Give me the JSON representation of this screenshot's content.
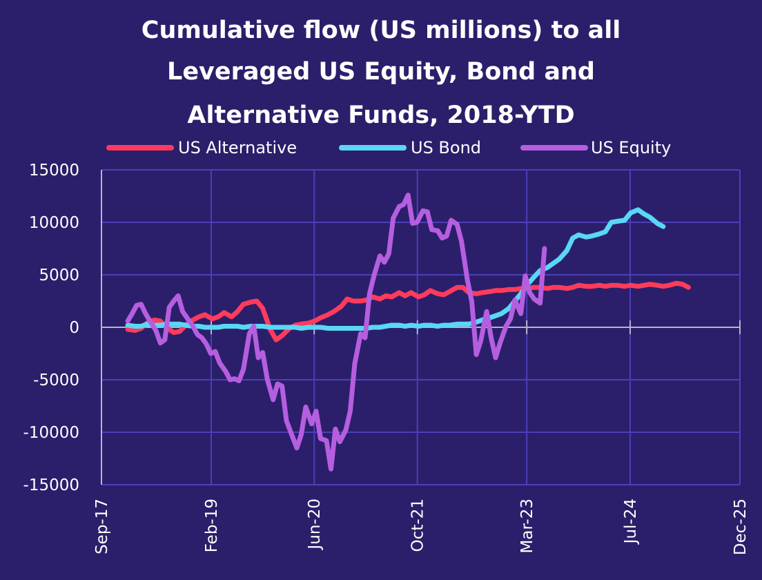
{
  "chart_data": {
    "type": "line",
    "title_lines": [
      "Cumulative flow (US millions) to all",
      "Leveraged US Equity, Bond and",
      "Alternative Funds, 2018-YTD"
    ],
    "xlabel": "",
    "ylabel": "",
    "x_ticks": [
      "Sep-17",
      "Feb-19",
      "Jun-20",
      "Oct-21",
      "Mar-23",
      "Jul-24",
      "Dec-25"
    ],
    "y_ticks": [
      "15000",
      "10000",
      "5000",
      "0",
      "-5000",
      "-10000",
      "-15000"
    ],
    "ylim": [
      -15000,
      15000
    ],
    "xlim": [
      "2017-09",
      "2025-12"
    ],
    "grid": true,
    "legend_position": "top",
    "series": [
      {
        "name": "US Alternative",
        "color": "#ff3b5c",
        "points": [
          [
            "2018-01-03",
            -200
          ],
          [
            "2018-02-07",
            -300
          ],
          [
            "2018-03-07",
            -100
          ],
          [
            "2018-04-04",
            400
          ],
          [
            "2018-05-09",
            700
          ],
          [
            "2018-06-06",
            600
          ],
          [
            "2018-07-04",
            0
          ],
          [
            "2018-08-08",
            -500
          ],
          [
            "2018-09-05",
            -400
          ],
          [
            "2018-10-03",
            200
          ],
          [
            "2018-11-07",
            700
          ],
          [
            "2018-12-05",
            1000
          ],
          [
            "2019-01-02",
            1200
          ],
          [
            "2019-02-06",
            800
          ],
          [
            "2019-03-06",
            1000
          ],
          [
            "2019-04-03",
            1400
          ],
          [
            "2019-05-08",
            1000
          ],
          [
            "2019-06-05",
            1500
          ],
          [
            "2019-07-03",
            2200
          ],
          [
            "2019-08-07",
            2400
          ],
          [
            "2019-09-04",
            2500
          ],
          [
            "2019-10-02",
            1800
          ],
          [
            "2019-11-06",
            -200
          ],
          [
            "2019-12-04",
            -1200
          ],
          [
            "2020-01-01",
            -800
          ],
          [
            "2020-02-05",
            -100
          ],
          [
            "2020-03-04",
            200
          ],
          [
            "2020-04-01",
            300
          ],
          [
            "2020-05-06",
            400
          ],
          [
            "2020-06-03",
            600
          ],
          [
            "2020-07-01",
            900
          ],
          [
            "2020-08-05",
            1200
          ],
          [
            "2020-09-02",
            1500
          ],
          [
            "2020-10-07",
            2000
          ],
          [
            "2020-11-04",
            2700
          ],
          [
            "2020-12-02",
            2500
          ],
          [
            "2021-01-06",
            2500
          ],
          [
            "2021-02-03",
            2600
          ],
          [
            "2021-03-03",
            2900
          ],
          [
            "2021-04-07",
            2700
          ],
          [
            "2021-05-05",
            3000
          ],
          [
            "2021-06-02",
            2900
          ],
          [
            "2021-07-07",
            3300
          ],
          [
            "2021-08-04",
            3000
          ],
          [
            "2021-09-01",
            3300
          ],
          [
            "2021-10-06",
            2900
          ],
          [
            "2021-11-03",
            3100
          ],
          [
            "2021-12-01",
            3500
          ],
          [
            "2022-01-05",
            3200
          ],
          [
            "2022-02-02",
            3100
          ],
          [
            "2022-03-02",
            3400
          ],
          [
            "2022-04-06",
            3800
          ],
          [
            "2022-05-04",
            3800
          ],
          [
            "2022-06-01",
            3300
          ],
          [
            "2022-07-06",
            3200
          ],
          [
            "2022-08-03",
            3300
          ],
          [
            "2022-09-07",
            3400
          ],
          [
            "2022-10-05",
            3500
          ],
          [
            "2022-11-02",
            3500
          ],
          [
            "2022-12-07",
            3600
          ],
          [
            "2023-01-04",
            3600
          ],
          [
            "2023-02-01",
            3700
          ],
          [
            "2023-03-01",
            3700
          ],
          [
            "2023-04-05",
            3800
          ],
          [
            "2023-05-03",
            3800
          ],
          [
            "2023-06-07",
            3700
          ],
          [
            "2023-07-05",
            3800
          ],
          [
            "2023-08-02",
            3800
          ],
          [
            "2023-09-06",
            3700
          ],
          [
            "2023-10-04",
            3800
          ],
          [
            "2023-11-01",
            4000
          ],
          [
            "2023-12-06",
            3900
          ],
          [
            "2024-01-03",
            3900
          ],
          [
            "2024-02-07",
            4000
          ],
          [
            "2024-03-06",
            3900
          ],
          [
            "2024-04-03",
            4000
          ],
          [
            "2024-05-01",
            4000
          ],
          [
            "2024-06-05",
            3900
          ],
          [
            "2024-07-03",
            4000
          ],
          [
            "2024-08-07",
            3900
          ],
          [
            "2024-09-04",
            4000
          ],
          [
            "2024-10-02",
            4100
          ],
          [
            "2024-11-06",
            4000
          ],
          [
            "2024-12-04",
            3900
          ],
          [
            "2025-01-01",
            4000
          ],
          [
            "2025-02-05",
            4200
          ],
          [
            "2025-03-05",
            4100
          ],
          [
            "2025-04-02",
            3800
          ]
        ]
      },
      {
        "name": "US Bond",
        "color": "#5ad7f5",
        "points": [
          [
            "2018-01-03",
            200
          ],
          [
            "2018-02-07",
            100
          ],
          [
            "2018-03-07",
            100
          ],
          [
            "2018-04-04",
            300
          ],
          [
            "2018-05-09",
            200
          ],
          [
            "2018-06-06",
            200
          ],
          [
            "2018-07-04",
            300
          ],
          [
            "2018-08-08",
            300
          ],
          [
            "2018-09-05",
            300
          ],
          [
            "2018-10-03",
            200
          ],
          [
            "2018-11-07",
            100
          ],
          [
            "2018-12-05",
            100
          ],
          [
            "2019-01-02",
            0
          ],
          [
            "2019-02-06",
            0
          ],
          [
            "2019-03-06",
            0
          ],
          [
            "2019-04-03",
            100
          ],
          [
            "2019-05-08",
            100
          ],
          [
            "2019-06-05",
            100
          ],
          [
            "2019-07-03",
            0
          ],
          [
            "2019-08-07",
            100
          ],
          [
            "2019-09-04",
            100
          ],
          [
            "2019-10-02",
            100
          ],
          [
            "2019-11-06",
            0
          ],
          [
            "2019-12-04",
            0
          ],
          [
            "2020-01-01",
            0
          ],
          [
            "2020-02-05",
            0
          ],
          [
            "2020-03-04",
            0
          ],
          [
            "2020-04-01",
            -100
          ],
          [
            "2020-05-06",
            0
          ],
          [
            "2020-06-03",
            0
          ],
          [
            "2020-07-01",
            0
          ],
          [
            "2020-08-05",
            -100
          ],
          [
            "2020-09-02",
            -100
          ],
          [
            "2020-10-07",
            -100
          ],
          [
            "2020-11-04",
            -100
          ],
          [
            "2020-12-02",
            -100
          ],
          [
            "2021-01-06",
            -100
          ],
          [
            "2021-02-03",
            -100
          ],
          [
            "2021-03-03",
            0
          ],
          [
            "2021-04-07",
            0
          ],
          [
            "2021-05-05",
            100
          ],
          [
            "2021-06-02",
            200
          ],
          [
            "2021-07-07",
            200
          ],
          [
            "2021-08-04",
            100
          ],
          [
            "2021-09-01",
            200
          ],
          [
            "2021-10-06",
            100
          ],
          [
            "2021-11-03",
            200
          ],
          [
            "2021-12-01",
            200
          ],
          [
            "2022-01-05",
            100
          ],
          [
            "2022-02-02",
            200
          ],
          [
            "2022-03-02",
            200
          ],
          [
            "2022-04-06",
            300
          ],
          [
            "2022-05-04",
            300
          ],
          [
            "2022-06-01",
            300
          ],
          [
            "2022-07-06",
            500
          ],
          [
            "2022-08-03",
            700
          ],
          [
            "2022-09-07",
            900
          ],
          [
            "2022-10-05",
            1100
          ],
          [
            "2022-11-02",
            1300
          ],
          [
            "2022-12-07",
            1800
          ],
          [
            "2023-01-04",
            2500
          ],
          [
            "2023-02-01",
            3200
          ],
          [
            "2023-03-01",
            4000
          ],
          [
            "2023-04-05",
            4800
          ],
          [
            "2023-05-03",
            5400
          ],
          [
            "2023-06-07",
            5700
          ],
          [
            "2023-07-05",
            6100
          ],
          [
            "2023-08-02",
            6500
          ],
          [
            "2023-09-06",
            7300
          ],
          [
            "2023-10-04",
            8500
          ],
          [
            "2023-11-01",
            8800
          ],
          [
            "2023-12-06",
            8600
          ],
          [
            "2024-01-03",
            8700
          ],
          [
            "2024-02-07",
            8900
          ],
          [
            "2024-03-06",
            9100
          ],
          [
            "2024-04-03",
            10000
          ],
          [
            "2024-05-01",
            10100
          ],
          [
            "2024-06-05",
            10200
          ],
          [
            "2024-07-03",
            10900
          ],
          [
            "2024-08-07",
            11200
          ],
          [
            "2024-09-04",
            10800
          ],
          [
            "2024-10-02",
            10500
          ],
          [
            "2024-11-06",
            9900
          ],
          [
            "2024-12-04",
            9600
          ]
        ]
      },
      {
        "name": "US Equity",
        "color": "#b65ee0",
        "points": [
          [
            "2018-01-03",
            600
          ],
          [
            "2018-01-24",
            1300
          ],
          [
            "2018-02-14",
            2100
          ],
          [
            "2018-03-07",
            2200
          ],
          [
            "2018-03-28",
            1300
          ],
          [
            "2018-04-18",
            600
          ],
          [
            "2018-05-16",
            -300
          ],
          [
            "2018-06-06",
            -1500
          ],
          [
            "2018-06-27",
            -1200
          ],
          [
            "2018-07-18",
            1900
          ],
          [
            "2018-08-08",
            2500
          ],
          [
            "2018-08-29",
            3000
          ],
          [
            "2018-09-19",
            1500
          ],
          [
            "2018-10-10",
            900
          ],
          [
            "2018-11-07",
            100
          ],
          [
            "2018-11-28",
            -700
          ],
          [
            "2018-12-19",
            -1000
          ],
          [
            "2019-01-09",
            -1600
          ],
          [
            "2019-01-30",
            -2500
          ],
          [
            "2019-02-20",
            -2300
          ],
          [
            "2019-03-13",
            -3400
          ],
          [
            "2019-04-10",
            -4200
          ],
          [
            "2019-05-01",
            -5000
          ],
          [
            "2019-05-22",
            -4900
          ],
          [
            "2019-06-12",
            -5100
          ],
          [
            "2019-07-03",
            -4000
          ],
          [
            "2019-07-31",
            -600
          ],
          [
            "2019-08-21",
            100
          ],
          [
            "2019-09-11",
            -2900
          ],
          [
            "2019-10-02",
            -2400
          ],
          [
            "2019-10-23",
            -4900
          ],
          [
            "2019-11-20",
            -6900
          ],
          [
            "2019-12-11",
            -5400
          ],
          [
            "2020-01-01",
            -5600
          ],
          [
            "2020-01-22",
            -8900
          ],
          [
            "2020-02-19",
            -10400
          ],
          [
            "2020-03-11",
            -11500
          ],
          [
            "2020-04-01",
            -10200
          ],
          [
            "2020-04-22",
            -7600
          ],
          [
            "2020-05-20",
            -9200
          ],
          [
            "2020-06-10",
            -8000
          ],
          [
            "2020-07-01",
            -10600
          ],
          [
            "2020-07-29",
            -10800
          ],
          [
            "2020-08-19",
            -13500
          ],
          [
            "2020-09-09",
            -9700
          ],
          [
            "2020-09-30",
            -10900
          ],
          [
            "2020-10-28",
            -9800
          ],
          [
            "2020-11-18",
            -8000
          ],
          [
            "2020-12-09",
            -3500
          ],
          [
            "2021-01-06",
            -600
          ],
          [
            "2021-01-27",
            -1000
          ],
          [
            "2021-02-17",
            3200
          ],
          [
            "2021-03-10",
            4900
          ],
          [
            "2021-04-07",
            6800
          ],
          [
            "2021-04-28",
            6200
          ],
          [
            "2021-05-19",
            7000
          ],
          [
            "2021-06-09",
            10400
          ],
          [
            "2021-07-07",
            11500
          ],
          [
            "2021-07-28",
            11700
          ],
          [
            "2021-08-18",
            12600
          ],
          [
            "2021-09-08",
            9900
          ],
          [
            "2021-09-29",
            10000
          ],
          [
            "2021-10-27",
            11100
          ],
          [
            "2021-11-17",
            11000
          ],
          [
            "2021-12-08",
            9300
          ],
          [
            "2022-01-05",
            9200
          ],
          [
            "2022-01-26",
            8500
          ],
          [
            "2022-02-16",
            8700
          ],
          [
            "2022-03-09",
            10200
          ],
          [
            "2022-04-06",
            9800
          ],
          [
            "2022-04-27",
            8200
          ],
          [
            "2022-05-25",
            4500
          ],
          [
            "2022-06-15",
            2400
          ],
          [
            "2022-07-06",
            -2600
          ],
          [
            "2022-07-27",
            -1300
          ],
          [
            "2022-08-24",
            1500
          ],
          [
            "2022-09-14",
            -1000
          ],
          [
            "2022-10-05",
            -2900
          ],
          [
            "2022-10-26",
            -1500
          ],
          [
            "2022-11-23",
            100
          ],
          [
            "2022-12-14",
            800
          ],
          [
            "2023-01-04",
            2600
          ],
          [
            "2023-02-01",
            1300
          ],
          [
            "2023-02-22",
            4900
          ],
          [
            "2023-03-15",
            3300
          ],
          [
            "2023-04-05",
            2700
          ],
          [
            "2023-05-03",
            2300
          ],
          [
            "2023-05-24",
            7500
          ]
        ]
      }
    ]
  }
}
